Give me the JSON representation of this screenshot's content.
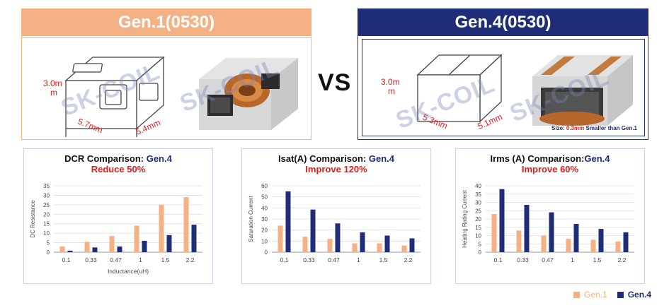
{
  "gen1": {
    "title": "Gen.1(0530)",
    "dim_height_a": "3.0m",
    "dim_height_b": "m",
    "dim_width": "5.7mm",
    "dim_depth": "5.4mm",
    "watermark": "SK-COIL"
  },
  "vs": "VS",
  "gen4": {
    "title": "Gen.4(0530)",
    "dim_height_a": "3.0m",
    "dim_height_b": "m",
    "dim_width": "5.3mm",
    "dim_depth": "5.1mm",
    "watermark": "SK-COIL",
    "size_note_label": "Size:",
    "size_note_value": "0.3mm",
    "size_note_rest": "Smaller than",
    "size_note_ref": "Gen.1"
  },
  "legend": {
    "gen1": "Gen.1",
    "gen4": "Gen.4"
  },
  "colors": {
    "gen1": "#f4b183",
    "gen4": "#1f2d78",
    "highlight": "#e81919"
  },
  "chart_data": [
    {
      "type": "bar",
      "title_prefix": "DCR Comparison: ",
      "title_gen": "Gen.4",
      "subtitle": "Reduce 50%",
      "xlabel": "Inductance(uH)",
      "ylabel": "DC Resistance",
      "categories": [
        "0.1",
        "0.33",
        "0.47",
        "1",
        "1.5",
        "2.2"
      ],
      "ylim": [
        0,
        35
      ],
      "yticks": [
        0,
        5,
        10,
        15,
        20,
        25,
        30,
        35
      ],
      "series": [
        {
          "name": "Gen.1",
          "values": [
            3,
            5.5,
            8.5,
            14,
            25,
            29
          ]
        },
        {
          "name": "Gen.4",
          "values": [
            0.8,
            2.5,
            3,
            6,
            9,
            14.5
          ]
        }
      ]
    },
    {
      "type": "bar",
      "title_prefix": "Isat(A) Comparison: ",
      "title_gen": "Gen.4",
      "subtitle": "Improve 120%",
      "xlabel": "",
      "ylabel": "Saturation Current",
      "categories": [
        "0.1",
        "0.33",
        "0.47",
        "1",
        "1.5",
        "2.2"
      ],
      "ylim": [
        0,
        60
      ],
      "yticks": [
        0,
        10,
        20,
        30,
        40,
        50,
        60
      ],
      "series": [
        {
          "name": "Gen.1",
          "values": [
            24,
            14,
            12,
            8,
            8,
            6
          ]
        },
        {
          "name": "Gen.4",
          "values": [
            55,
            38.5,
            26,
            18,
            15,
            12.5
          ]
        }
      ]
    },
    {
      "type": "bar",
      "title_prefix": "Irms (A) Comparison:",
      "title_gen": "Gen.4",
      "subtitle": "Improve 60%",
      "xlabel": "",
      "ylabel": "Heating Rating Current",
      "categories": [
        "0.1",
        "0.33",
        "0.47",
        "1",
        "1.5",
        "2.2"
      ],
      "ylim": [
        0,
        40
      ],
      "yticks": [
        0,
        5,
        10,
        15,
        20,
        25,
        30,
        35,
        40
      ],
      "series": [
        {
          "name": "Gen.1",
          "values": [
            23,
            13,
            10,
            8,
            7.5,
            6.5
          ]
        },
        {
          "name": "Gen.4",
          "values": [
            38,
            28.5,
            24,
            17,
            14,
            12
          ]
        }
      ]
    }
  ]
}
